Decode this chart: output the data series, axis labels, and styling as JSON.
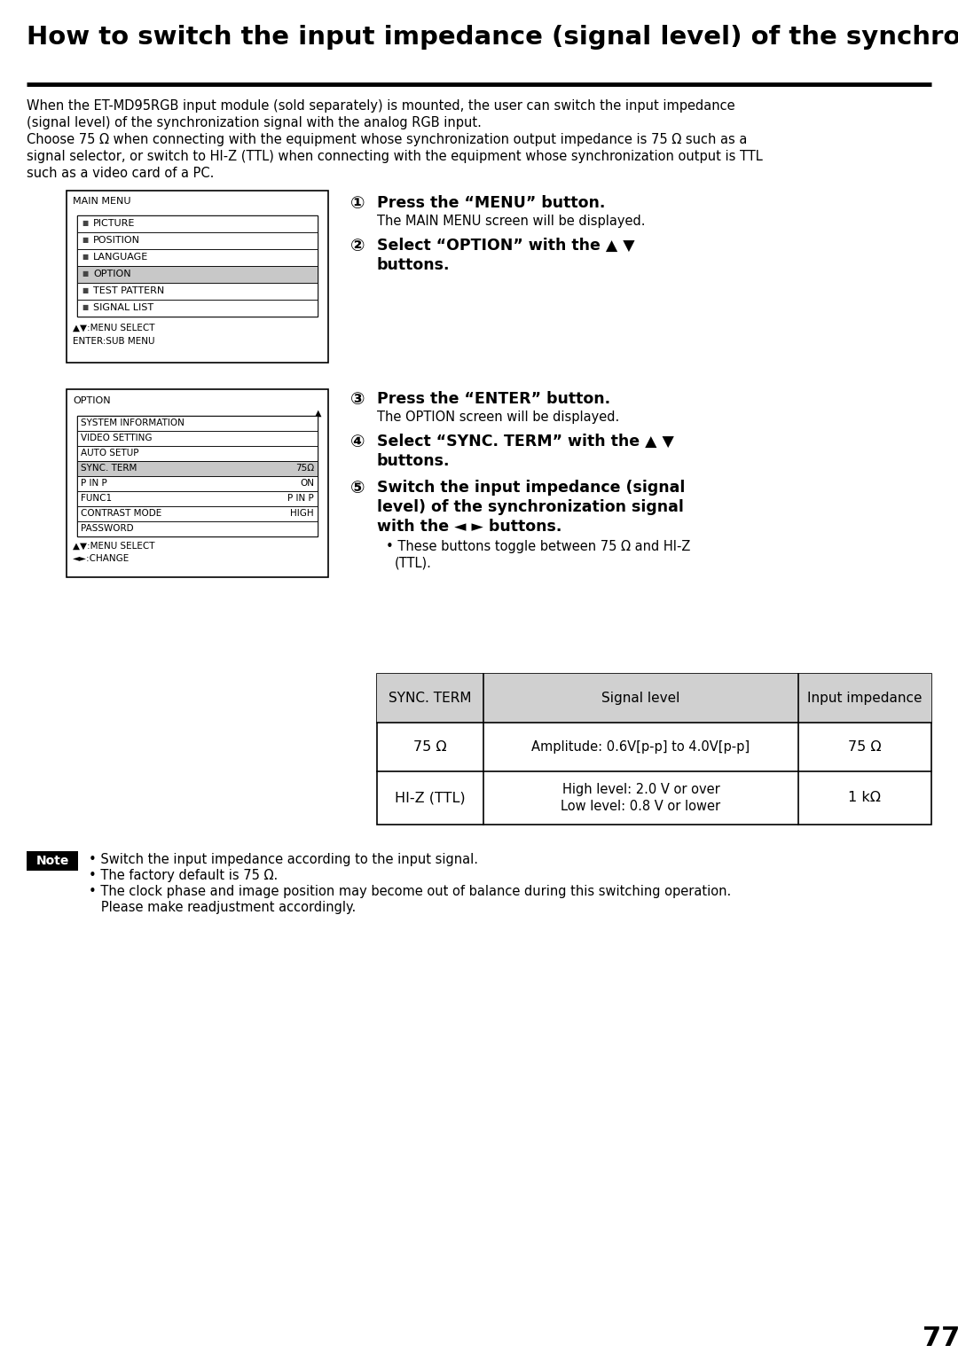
{
  "title": "How to switch the input impedance (signal level) of the synchronization signal",
  "bg_color": "#ffffff",
  "text_color": "#000000",
  "intro_text1": "When the ET-MD95RGB input module (sold separately) is mounted, the user can switch the input impedance",
  "intro_text2": "(signal level) of the synchronization signal with the analog RGB input.",
  "intro_text3": "Choose 75 Ω when connecting with the equipment whose synchronization output impedance is 75 Ω such as a",
  "intro_text4": "signal selector, or switch to HI-Z (TTL) when connecting with the equipment whose synchronization output is TTL",
  "intro_text5": "such as a video card of a PC.",
  "menu1_title": "MAIN MENU",
  "menu1_items": [
    "PICTURE",
    "POSITION",
    "LANGUAGE",
    "OPTION",
    "TEST PATTERN",
    "SIGNAL LIST"
  ],
  "menu1_selected": 3,
  "menu1_footer1": "▲▼:MENU SELECT",
  "menu1_footer2": "ENTER:SUB MENU",
  "menu2_title": "OPTION",
  "menu2_items": [
    "SYSTEM INFORMATION",
    "VIDEO SETTING",
    "AUTO SETUP",
    "SYNC. TERM",
    "P IN P",
    "FUNC1",
    "CONTRAST MODE",
    "PASSWORD"
  ],
  "menu2_values": [
    "",
    "",
    "",
    "75Ω",
    "ON",
    "P IN P",
    "HIGH",
    ""
  ],
  "menu2_selected": 3,
  "menu2_footer1": "▲▼:MENU SELECT",
  "menu2_footer2": "◄►:CHANGE",
  "step1_bold": "Press the “MENU” button.",
  "step1_text": "The MAIN MENU screen will be displayed.",
  "step2_bold": "Select “OPTION” with the ▲ ▼",
  "step2_bold2": "buttons.",
  "step3_bold": "Press the “ENTER” button.",
  "step3_text": "The OPTION screen will be displayed.",
  "step4_bold": "Select “SYNC. TERM” with the ▲ ▼",
  "step4_bold2": "buttons.",
  "step5_bold": "Switch the input impedance (signal",
  "step5_bold2": "level) of the synchronization signal",
  "step5_bold3": "with the ◄ ► buttons.",
  "step5_bullet": "• These buttons toggle between 75 Ω and HI-Z",
  "step5_bullet2": "(TTL).",
  "table_headers": [
    "SYNC. TERM",
    "Signal level",
    "Input impedance"
  ],
  "table_row1_col1": "75 Ω",
  "table_row1_col2": "Amplitude: 0.6V[p-p] to 4.0V[p-p]",
  "table_row1_col3": "75 Ω",
  "table_row2_col1": "HI-Z (TTL)",
  "table_row2_col2a": "High level: 2.0 V or over",
  "table_row2_col2b": "Low level: 0.8 V or lower",
  "table_row2_col3": "1 kΩ",
  "note_label": "Note",
  "note1": "• Switch the input impedance according to the input signal.",
  "note2": "• The factory default is 75 Ω.",
  "note3": "• The clock phase and image position may become out of balance during this switching operation.",
  "note4": "   Please make readjustment accordingly.",
  "page_num": "77"
}
